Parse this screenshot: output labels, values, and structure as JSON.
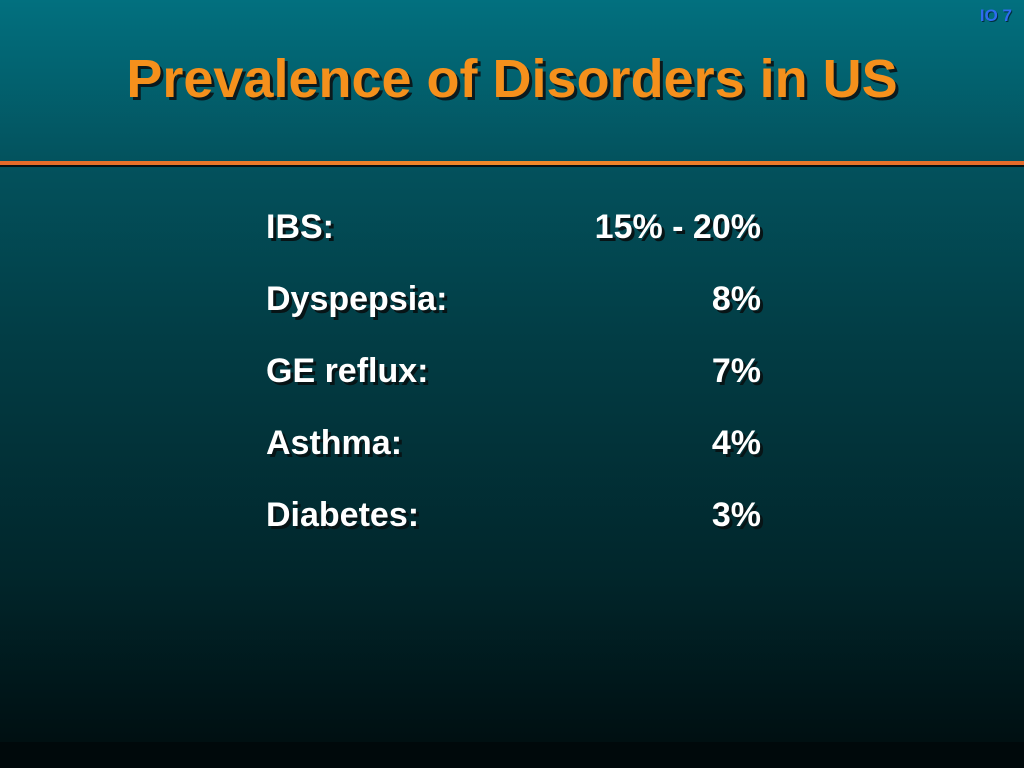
{
  "slide": {
    "number": "IO 7",
    "title": "Prevalence of Disorders in US",
    "rows": [
      {
        "label": "IBS:",
        "value": "15% - 20%"
      },
      {
        "label": "Dyspepsia:",
        "value": "8%"
      },
      {
        "label": "GE reflux:",
        "value": "7%"
      },
      {
        "label": "Asthma:",
        "value": "4%"
      },
      {
        "label": "Diabetes:",
        "value": "3%"
      }
    ]
  },
  "colors": {
    "title": "#f5901c",
    "text": "#ffffff",
    "slide_number": "#2e6cf0",
    "rule": "#e46a2a",
    "background_top": "#02707f",
    "background_bottom": "#000c0e"
  }
}
